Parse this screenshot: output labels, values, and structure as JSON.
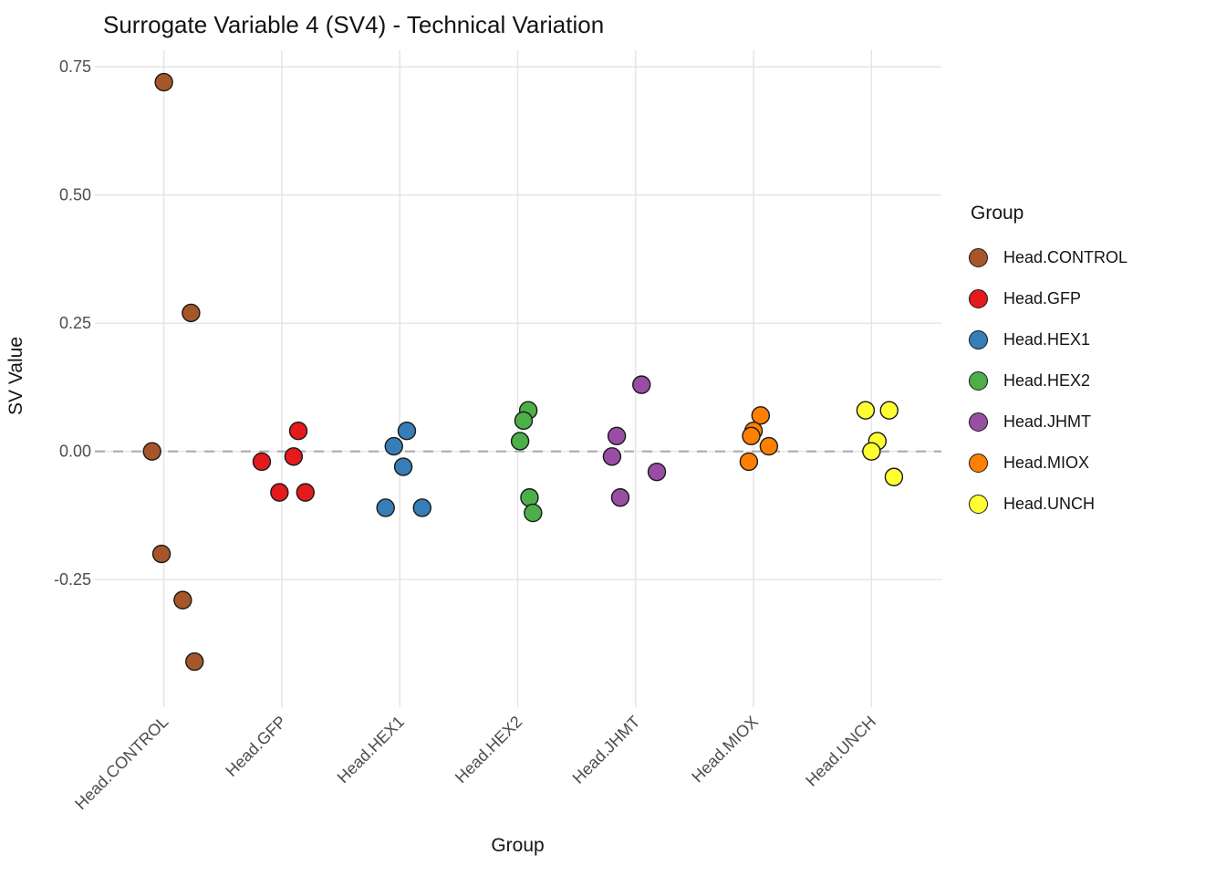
{
  "chart_data": {
    "type": "scatter",
    "title": "Surrogate Variable 4 (SV4) - Technical Variation",
    "xlabel": "Group",
    "ylabel": "SV Value",
    "legend_title": "Group",
    "legend_position": "right",
    "grid": true,
    "categories": [
      "Head.CONTROL",
      "Head.GFP",
      "Head.HEX1",
      "Head.HEX2",
      "Head.JHMT",
      "Head.MIOX",
      "Head.UNCH"
    ],
    "ytick_labels": [
      "0.75",
      "0.50",
      "0.25",
      "0.00",
      "-0.25"
    ],
    "ytick_values": [
      0.75,
      0.5,
      0.25,
      0.0,
      -0.25
    ],
    "ylim": [
      -0.49,
      0.77
    ],
    "reference_line": 0.0,
    "colors": {
      "grid": "#E4E4E4",
      "reference_line": "#ABABAB",
      "point_stroke": "#1A1A1A",
      "axis_text": "#4D4D4D",
      "title_text": "#141414"
    },
    "series": [
      {
        "name": "Head.CONTROL",
        "color": "#A65628",
        "points": [
          [
            0.0,
            0.72
          ],
          [
            0.23,
            0.27
          ],
          [
            -0.1,
            0.0
          ],
          [
            -0.02,
            -0.2
          ],
          [
            0.16,
            -0.29
          ],
          [
            0.26,
            -0.41
          ]
        ]
      },
      {
        "name": "Head.GFP",
        "color": "#E41A1C",
        "points": [
          [
            -0.17,
            -0.02
          ],
          [
            0.14,
            0.04
          ],
          [
            0.1,
            -0.01
          ],
          [
            -0.02,
            -0.08
          ],
          [
            0.2,
            -0.08
          ]
        ]
      },
      {
        "name": "Head.HEX1",
        "color": "#377EB8",
        "points": [
          [
            0.06,
            0.04
          ],
          [
            -0.05,
            0.01
          ],
          [
            0.03,
            -0.03
          ],
          [
            -0.12,
            -0.11
          ],
          [
            0.19,
            -0.11
          ]
        ]
      },
      {
        "name": "Head.HEX2",
        "color": "#4DAF4A",
        "points": [
          [
            0.09,
            0.08
          ],
          [
            0.05,
            0.06
          ],
          [
            0.02,
            0.02
          ],
          [
            0.1,
            -0.09
          ],
          [
            0.13,
            -0.12
          ]
        ]
      },
      {
        "name": "Head.JHMT",
        "color": "#984EA3",
        "points": [
          [
            0.05,
            0.13
          ],
          [
            -0.16,
            0.03
          ],
          [
            -0.2,
            -0.01
          ],
          [
            -0.13,
            -0.09
          ],
          [
            0.18,
            -0.04
          ]
        ]
      },
      {
        "name": "Head.MIOX",
        "color": "#FF7F00",
        "points": [
          [
            0.06,
            0.07
          ],
          [
            0.0,
            0.04
          ],
          [
            -0.02,
            0.03
          ],
          [
            0.13,
            0.01
          ],
          [
            -0.04,
            -0.02
          ]
        ]
      },
      {
        "name": "Head.UNCH",
        "color": "#FFFF33",
        "points": [
          [
            -0.05,
            0.08
          ],
          [
            0.15,
            0.08
          ],
          [
            0.05,
            0.02
          ],
          [
            0.0,
            0.0
          ],
          [
            0.19,
            -0.05
          ]
        ]
      }
    ]
  }
}
